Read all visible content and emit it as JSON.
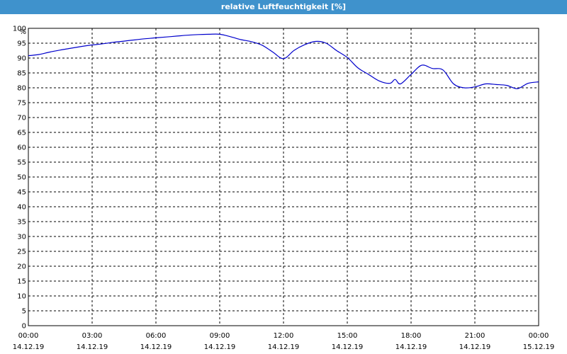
{
  "window": {
    "title": "relative Luftfeuchtigkeit [%]"
  },
  "colors": {
    "titlebar": "#3f92cc",
    "line": "#0000cc",
    "grid": "#000000",
    "background": "#ffffff"
  },
  "chart_data": {
    "type": "line",
    "title": "relative Luftfeuchtigkeit [%]",
    "ylabel": "%",
    "xlabel": "",
    "ylim": [
      0,
      100
    ],
    "y_ticks": [
      0,
      5,
      10,
      15,
      20,
      25,
      30,
      35,
      40,
      45,
      50,
      55,
      60,
      65,
      70,
      75,
      80,
      85,
      90,
      95,
      100
    ],
    "x_ticks": [
      {
        "time": "00:00",
        "date": "14.12.19"
      },
      {
        "time": "03:00",
        "date": "14.12.19"
      },
      {
        "time": "06:00",
        "date": "14.12.19"
      },
      {
        "time": "09:00",
        "date": "14.12.19"
      },
      {
        "time": "12:00",
        "date": "14.12.19"
      },
      {
        "time": "15:00",
        "date": "14.12.19"
      },
      {
        "time": "18:00",
        "date": "14.12.19"
      },
      {
        "time": "21:00",
        "date": "14.12.19"
      },
      {
        "time": "00:00",
        "date": "15.12.19"
      }
    ],
    "grid": true,
    "legend": "none",
    "series": [
      {
        "x": [
          "14.12.19 00:00",
          "14.12.19 00:30",
          "14.12.19 01:00",
          "14.12.19 01:30",
          "14.12.19 02:00",
          "14.12.19 02:30",
          "14.12.19 03:00",
          "14.12.19 03:30",
          "14.12.19 04:00",
          "14.12.19 04:30",
          "14.12.19 05:00",
          "14.12.19 05:30",
          "14.12.19 06:00",
          "14.12.19 06:30",
          "14.12.19 07:00",
          "14.12.19 07:30",
          "14.12.19 08:00",
          "14.12.19 08:30",
          "14.12.19 09:00",
          "14.12.19 09:30",
          "14.12.19 10:00",
          "14.12.19 10:30",
          "14.12.19 11:00",
          "14.12.19 11:30",
          "14.12.19 12:00",
          "14.12.19 12:30",
          "14.12.19 13:00",
          "14.12.19 13:30",
          "14.12.19 14:00",
          "14.12.19 14:30",
          "14.12.19 15:00",
          "14.12.19 15:30",
          "14.12.19 16:00",
          "14.12.19 16:30",
          "14.12.19 17:00",
          "14.12.19 17:15",
          "14.12.19 17:30",
          "14.12.19 18:00",
          "14.12.19 18:30",
          "14.12.19 19:00",
          "14.12.19 19:30",
          "14.12.19 20:00",
          "14.12.19 20:30",
          "14.12.19 21:00",
          "14.12.19 21:30",
          "14.12.19 22:00",
          "14.12.19 22:30",
          "14.12.19 23:00",
          "14.12.19 23:30",
          "15.12.19 00:00"
        ],
        "y": [
          90.8,
          91.2,
          92.0,
          92.7,
          93.3,
          93.9,
          94.4,
          94.8,
          95.3,
          95.7,
          96.1,
          96.5,
          96.8,
          97.1,
          97.4,
          97.7,
          97.9,
          98.0,
          98.0,
          97.2,
          96.2,
          95.5,
          94.3,
          92.0,
          89.8,
          92.6,
          94.5,
          95.6,
          95.0,
          92.5,
          90.2,
          86.7,
          84.5,
          82.3,
          81.5,
          82.8,
          81.3,
          84.5,
          87.6,
          86.5,
          86.0,
          81.3,
          80.0,
          80.3,
          81.3,
          81.1,
          80.8,
          79.7,
          81.5,
          82.0
        ]
      }
    ]
  }
}
